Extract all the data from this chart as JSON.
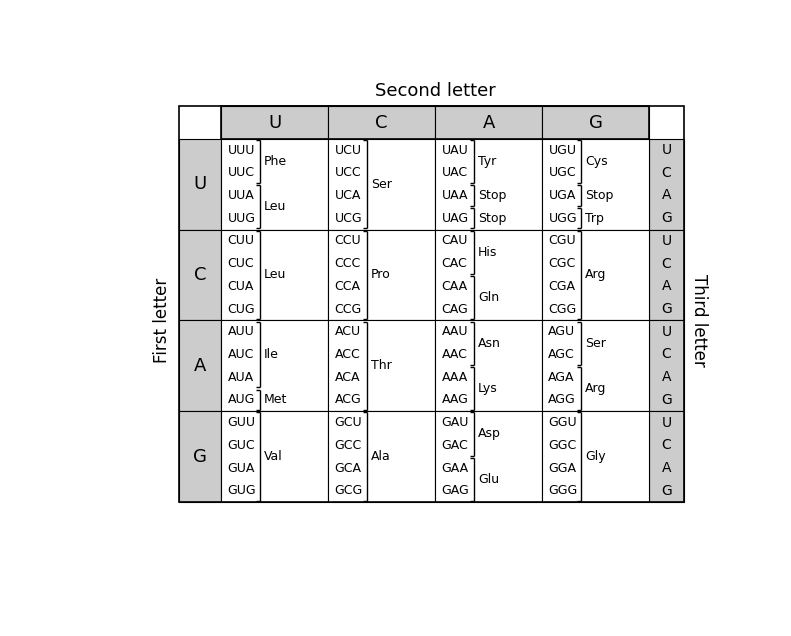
{
  "title_top": "Second letter",
  "title_left": "First letter",
  "title_right": "Third letter",
  "second_letters": [
    "U",
    "C",
    "A",
    "G"
  ],
  "first_letters": [
    "U",
    "C",
    "A",
    "G"
  ],
  "third_letters": [
    "U",
    "C",
    "A",
    "G"
  ],
  "cell_bg": "#ffffff",
  "header_bg": "#cccccc",
  "fig_bg": "#ffffff",
  "cells": [
    {
      "codons": [
        "UUU",
        "UUC",
        "UUA",
        "UUG"
      ],
      "bracket_groups": [
        {
          "lines": [
            0,
            1
          ],
          "aa": "Phe"
        },
        {
          "lines": [
            2,
            3
          ],
          "aa": "Leu"
        }
      ]
    },
    {
      "codons": [
        "UCU",
        "UCC",
        "UCA",
        "UCG"
      ],
      "bracket_groups": [
        {
          "lines": [
            0,
            1,
            2,
            3
          ],
          "aa": "Ser"
        }
      ]
    },
    {
      "codons": [
        "UAU",
        "UAC",
        "UAA",
        "UAG"
      ],
      "bracket_groups": [
        {
          "lines": [
            0,
            1
          ],
          "aa": "Tyr"
        },
        {
          "lines": [
            2
          ],
          "aa": "Stop"
        },
        {
          "lines": [
            3
          ],
          "aa": "Stop"
        }
      ]
    },
    {
      "codons": [
        "UGU",
        "UGC",
        "UGA",
        "UGG"
      ],
      "bracket_groups": [
        {
          "lines": [
            0,
            1
          ],
          "aa": "Cys"
        },
        {
          "lines": [
            2
          ],
          "aa": "Stop"
        },
        {
          "lines": [
            3
          ],
          "aa": "Trp"
        }
      ]
    },
    {
      "codons": [
        "CUU",
        "CUC",
        "CUA",
        "CUG"
      ],
      "bracket_groups": [
        {
          "lines": [
            0,
            1,
            2,
            3
          ],
          "aa": "Leu"
        }
      ]
    },
    {
      "codons": [
        "CCU",
        "CCC",
        "CCA",
        "CCG"
      ],
      "bracket_groups": [
        {
          "lines": [
            0,
            1,
            2,
            3
          ],
          "aa": "Pro"
        }
      ]
    },
    {
      "codons": [
        "CAU",
        "CAC",
        "CAA",
        "CAG"
      ],
      "bracket_groups": [
        {
          "lines": [
            0,
            1
          ],
          "aa": "His"
        },
        {
          "lines": [
            2,
            3
          ],
          "aa": "Gln"
        }
      ]
    },
    {
      "codons": [
        "CGU",
        "CGC",
        "CGA",
        "CGG"
      ],
      "bracket_groups": [
        {
          "lines": [
            0,
            1,
            2,
            3
          ],
          "aa": "Arg"
        }
      ]
    },
    {
      "codons": [
        "AUU",
        "AUC",
        "AUA",
        "AUG"
      ],
      "bracket_groups": [
        {
          "lines": [
            0,
            1,
            2
          ],
          "aa": "Ile"
        },
        {
          "lines": [
            3
          ],
          "aa": "Met"
        }
      ]
    },
    {
      "codons": [
        "ACU",
        "ACC",
        "ACA",
        "ACG"
      ],
      "bracket_groups": [
        {
          "lines": [
            0,
            1,
            2,
            3
          ],
          "aa": "Thr"
        }
      ]
    },
    {
      "codons": [
        "AAU",
        "AAC",
        "AAA",
        "AAG"
      ],
      "bracket_groups": [
        {
          "lines": [
            0,
            1
          ],
          "aa": "Asn"
        },
        {
          "lines": [
            2,
            3
          ],
          "aa": "Lys"
        }
      ]
    },
    {
      "codons": [
        "AGU",
        "AGC",
        "AGA",
        "AGG"
      ],
      "bracket_groups": [
        {
          "lines": [
            0,
            1
          ],
          "aa": "Ser"
        },
        {
          "lines": [
            2,
            3
          ],
          "aa": "Arg"
        }
      ]
    },
    {
      "codons": [
        "GUU",
        "GUC",
        "GUA",
        "GUG"
      ],
      "bracket_groups": [
        {
          "lines": [
            0,
            1,
            2,
            3
          ],
          "aa": "Val"
        }
      ]
    },
    {
      "codons": [
        "GCU",
        "GCC",
        "GCA",
        "GCG"
      ],
      "bracket_groups": [
        {
          "lines": [
            0,
            1,
            2,
            3
          ],
          "aa": "Ala"
        }
      ]
    },
    {
      "codons": [
        "GAU",
        "GAC",
        "GAA",
        "GAG"
      ],
      "bracket_groups": [
        {
          "lines": [
            0,
            1
          ],
          "aa": "Asp"
        },
        {
          "lines": [
            2,
            3
          ],
          "aa": "Glu"
        }
      ]
    },
    {
      "codons": [
        "GGU",
        "GGC",
        "GGA",
        "GGG"
      ],
      "bracket_groups": [
        {
          "lines": [
            0,
            1,
            2,
            3
          ],
          "aa": "Gly"
        }
      ]
    }
  ]
}
